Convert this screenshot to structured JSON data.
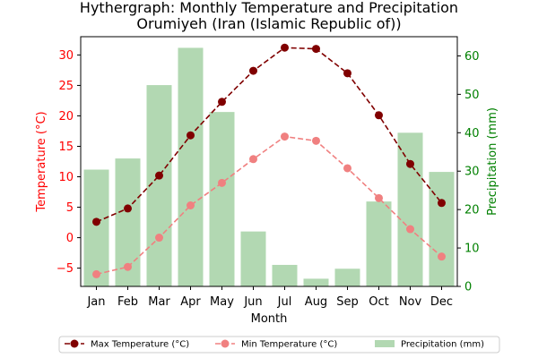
{
  "chart_data": {
    "type": "bar",
    "title": "Hythergraph: Monthly Temperature and Precipitation",
    "subtitle": "Orumiyeh (Iran (Islamic Republic of))",
    "xlabel": "Month",
    "ylabel_left": "Temperature (°C)",
    "ylabel_right": "Precipitation (mm)",
    "categories": [
      "Jan",
      "Feb",
      "Mar",
      "Apr",
      "May",
      "Jun",
      "Jul",
      "Aug",
      "Sep",
      "Oct",
      "Nov",
      "Dec"
    ],
    "ylim_left": [
      -8,
      33
    ],
    "yticks_left": [
      -5,
      0,
      5,
      10,
      15,
      20,
      25,
      30
    ],
    "ylim_right": [
      0,
      65
    ],
    "yticks_right": [
      0,
      10,
      20,
      30,
      40,
      50,
      60
    ],
    "grid": false,
    "legend_position": "bottom-center",
    "series": [
      {
        "name": "Max Temperature (°C)",
        "type": "line",
        "axis": "left",
        "color": "#800000",
        "linestyle": "dashed",
        "marker": "circle",
        "values": [
          2.6,
          4.8,
          10.2,
          16.8,
          22.3,
          27.4,
          31.2,
          31.0,
          27.0,
          20.1,
          12.1,
          5.7
        ]
      },
      {
        "name": "Min Temperature (°C)",
        "type": "line",
        "axis": "left",
        "color": "#f08080",
        "linestyle": "dashed",
        "marker": "circle",
        "values": [
          -6.0,
          -4.8,
          0.0,
          5.3,
          9.0,
          12.9,
          16.6,
          15.9,
          11.4,
          6.5,
          1.4,
          -3.1
        ]
      },
      {
        "name": "Precipitation (mm)",
        "type": "bar",
        "axis": "right",
        "color": "#b2d8b2",
        "values": [
          30.4,
          33.3,
          52.4,
          62.1,
          45.4,
          14.3,
          5.6,
          2.0,
          4.6,
          22.1,
          40.0,
          29.8
        ]
      }
    ],
    "colors": {
      "left_axis": "#ff0000",
      "right_axis": "#008000",
      "text": "#000000"
    }
  }
}
